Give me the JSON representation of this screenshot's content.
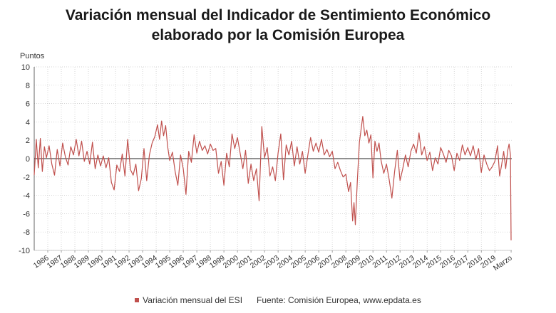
{
  "chart_data": {
    "type": "line",
    "title_line1": "Variación mensual del Indicador de Sentimiento Económico",
    "title_line2": "elaborado por la Comisión Europea",
    "ylabel": "Puntos",
    "ylim": [
      -10,
      10
    ],
    "yticks": [
      10,
      8,
      6,
      4,
      2,
      0,
      -2,
      -4,
      -6,
      -8,
      -10
    ],
    "grid": true,
    "line_color": "#c0504d",
    "x_start_year": 1985,
    "x_end_year": 2020.25,
    "x_labels": [
      {
        "year": 1986,
        "label": "1986"
      },
      {
        "year": 1987,
        "label": "1987"
      },
      {
        "year": 1988,
        "label": "1988"
      },
      {
        "year": 1989,
        "label": "1989"
      },
      {
        "year": 1990,
        "label": "1990"
      },
      {
        "year": 1991,
        "label": "1991"
      },
      {
        "year": 1992,
        "label": "1992"
      },
      {
        "year": 1993,
        "label": "1993"
      },
      {
        "year": 1994,
        "label": "1994"
      },
      {
        "year": 1995,
        "label": "1995"
      },
      {
        "year": 1996,
        "label": "1996"
      },
      {
        "year": 1997,
        "label": "1997"
      },
      {
        "year": 1998,
        "label": "1998"
      },
      {
        "year": 1999,
        "label": "1999"
      },
      {
        "year": 2000,
        "label": "2000"
      },
      {
        "year": 2001,
        "label": "2001"
      },
      {
        "year": 2002,
        "label": "2002"
      },
      {
        "year": 2003,
        "label": "2003"
      },
      {
        "year": 2004,
        "label": "2004"
      },
      {
        "year": 2005,
        "label": "2005"
      },
      {
        "year": 2006,
        "label": "2006"
      },
      {
        "year": 2007,
        "label": "2007"
      },
      {
        "year": 2008,
        "label": "2008"
      },
      {
        "year": 2009,
        "label": "2009"
      },
      {
        "year": 2010,
        "label": "2010"
      },
      {
        "year": 2011,
        "label": "2011"
      },
      {
        "year": 2012,
        "label": "2012"
      },
      {
        "year": 2013,
        "label": "2013"
      },
      {
        "year": 2014,
        "label": "2014"
      },
      {
        "year": 2015,
        "label": "2015"
      },
      {
        "year": 2016,
        "label": "2016"
      },
      {
        "year": 2017,
        "label": "2017"
      },
      {
        "year": 2018,
        "label": "2018"
      },
      {
        "year": 2019,
        "label": "2019"
      },
      {
        "year": 2020.2,
        "label": "Marzo"
      }
    ],
    "series": [
      {
        "name": "Variación mensual del ESI",
        "points": [
          [
            1985.0,
            -1.8
          ],
          [
            1985.15,
            2.1
          ],
          [
            1985.3,
            -1.0
          ],
          [
            1985.45,
            2.2
          ],
          [
            1985.6,
            -1.4
          ],
          [
            1985.75,
            1.3
          ],
          [
            1985.9,
            0.1
          ],
          [
            1986.1,
            1.4
          ],
          [
            1986.3,
            -0.6
          ],
          [
            1986.5,
            -1.8
          ],
          [
            1986.7,
            1.0
          ],
          [
            1986.9,
            -0.8
          ],
          [
            1987.1,
            1.7
          ],
          [
            1987.3,
            0.2
          ],
          [
            1987.5,
            -0.7
          ],
          [
            1987.7,
            1.3
          ],
          [
            1987.9,
            0.4
          ],
          [
            1988.1,
            2.1
          ],
          [
            1988.3,
            0.3
          ],
          [
            1988.5,
            1.9
          ],
          [
            1988.7,
            -0.3
          ],
          [
            1988.9,
            0.8
          ],
          [
            1989.1,
            -0.6
          ],
          [
            1989.3,
            1.8
          ],
          [
            1989.5,
            -1.1
          ],
          [
            1989.7,
            0.4
          ],
          [
            1989.9,
            -0.8
          ],
          [
            1990.1,
            0.3
          ],
          [
            1990.3,
            -1.0
          ],
          [
            1990.5,
            0.1
          ],
          [
            1990.7,
            -2.6
          ],
          [
            1990.9,
            -3.4
          ],
          [
            1991.1,
            -0.7
          ],
          [
            1991.3,
            -1.4
          ],
          [
            1991.5,
            0.5
          ],
          [
            1991.7,
            -1.9
          ],
          [
            1991.9,
            2.1
          ],
          [
            1992.1,
            -1.2
          ],
          [
            1992.3,
            -1.8
          ],
          [
            1992.5,
            -0.6
          ],
          [
            1992.7,
            -3.5
          ],
          [
            1992.9,
            -2.2
          ],
          [
            1993.1,
            1.1
          ],
          [
            1993.3,
            -2.4
          ],
          [
            1993.5,
            0.4
          ],
          [
            1993.7,
            1.7
          ],
          [
            1993.9,
            2.4
          ],
          [
            1994.1,
            3.7
          ],
          [
            1994.25,
            2.1
          ],
          [
            1994.4,
            4.1
          ],
          [
            1994.55,
            2.5
          ],
          [
            1994.7,
            3.6
          ],
          [
            1994.85,
            1.3
          ],
          [
            1995.0,
            -0.2
          ],
          [
            1995.2,
            0.7
          ],
          [
            1995.4,
            -1.4
          ],
          [
            1995.6,
            -2.9
          ],
          [
            1995.8,
            0.4
          ],
          [
            1996.0,
            -1.1
          ],
          [
            1996.2,
            -3.9
          ],
          [
            1996.4,
            0.8
          ],
          [
            1996.6,
            -0.4
          ],
          [
            1996.8,
            2.6
          ],
          [
            1997.0,
            0.6
          ],
          [
            1997.2,
            1.9
          ],
          [
            1997.4,
            0.9
          ],
          [
            1997.6,
            1.4
          ],
          [
            1997.8,
            0.5
          ],
          [
            1998.0,
            1.6
          ],
          [
            1998.2,
            0.9
          ],
          [
            1998.4,
            1.1
          ],
          [
            1998.6,
            -1.6
          ],
          [
            1998.8,
            -0.3
          ],
          [
            1999.0,
            -2.9
          ],
          [
            1999.2,
            0.6
          ],
          [
            1999.4,
            -0.9
          ],
          [
            1999.6,
            2.7
          ],
          [
            1999.8,
            1.1
          ],
          [
            2000.0,
            2.3
          ],
          [
            2000.2,
            0.6
          ],
          [
            2000.4,
            -1.1
          ],
          [
            2000.6,
            0.9
          ],
          [
            2000.8,
            -2.7
          ],
          [
            2001.0,
            -0.6
          ],
          [
            2001.2,
            -2.4
          ],
          [
            2001.4,
            -1.1
          ],
          [
            2001.6,
            -4.6
          ],
          [
            2001.8,
            3.5
          ],
          [
            2002.0,
            0.1
          ],
          [
            2002.2,
            1.2
          ],
          [
            2002.4,
            -1.9
          ],
          [
            2002.6,
            -0.9
          ],
          [
            2002.8,
            -2.4
          ],
          [
            2003.0,
            0.6
          ],
          [
            2003.2,
            2.7
          ],
          [
            2003.4,
            -2.3
          ],
          [
            2003.6,
            1.5
          ],
          [
            2003.8,
            0.4
          ],
          [
            2004.0,
            1.9
          ],
          [
            2004.2,
            -0.8
          ],
          [
            2004.4,
            1.3
          ],
          [
            2004.6,
            -0.6
          ],
          [
            2004.8,
            0.8
          ],
          [
            2005.0,
            -1.6
          ],
          [
            2005.2,
            0.4
          ],
          [
            2005.4,
            2.3
          ],
          [
            2005.6,
            0.8
          ],
          [
            2005.8,
            1.7
          ],
          [
            2006.0,
            0.7
          ],
          [
            2006.2,
            2.1
          ],
          [
            2006.4,
            0.4
          ],
          [
            2006.6,
            1.0
          ],
          [
            2006.8,
            0.2
          ],
          [
            2007.0,
            0.8
          ],
          [
            2007.2,
            -1.1
          ],
          [
            2007.4,
            -0.4
          ],
          [
            2007.6,
            -1.3
          ],
          [
            2007.8,
            -2.0
          ],
          [
            2008.0,
            -1.7
          ],
          [
            2008.2,
            -3.6
          ],
          [
            2008.35,
            -2.6
          ],
          [
            2008.5,
            -6.8
          ],
          [
            2008.6,
            -4.8
          ],
          [
            2008.7,
            -7.2
          ],
          [
            2008.85,
            -2.4
          ],
          [
            2009.0,
            1.8
          ],
          [
            2009.1,
            2.9
          ],
          [
            2009.25,
            4.6
          ],
          [
            2009.4,
            2.5
          ],
          [
            2009.55,
            3.1
          ],
          [
            2009.7,
            1.7
          ],
          [
            2009.85,
            2.6
          ],
          [
            2010.0,
            -2.1
          ],
          [
            2010.15,
            1.9
          ],
          [
            2010.3,
            0.8
          ],
          [
            2010.45,
            1.7
          ],
          [
            2010.6,
            -0.2
          ],
          [
            2010.8,
            -1.6
          ],
          [
            2011.0,
            -0.6
          ],
          [
            2011.2,
            -2.3
          ],
          [
            2011.4,
            -4.3
          ],
          [
            2011.6,
            -1.4
          ],
          [
            2011.8,
            0.9
          ],
          [
            2012.0,
            -2.4
          ],
          [
            2012.2,
            -1.1
          ],
          [
            2012.4,
            0.4
          ],
          [
            2012.6,
            -0.9
          ],
          [
            2012.8,
            0.8
          ],
          [
            2013.0,
            1.6
          ],
          [
            2013.2,
            0.6
          ],
          [
            2013.4,
            2.8
          ],
          [
            2013.6,
            0.4
          ],
          [
            2013.8,
            1.3
          ],
          [
            2014.0,
            -0.2
          ],
          [
            2014.2,
            0.7
          ],
          [
            2014.4,
            -1.3
          ],
          [
            2014.6,
            0.1
          ],
          [
            2014.8,
            -0.6
          ],
          [
            2015.0,
            1.2
          ],
          [
            2015.2,
            0.5
          ],
          [
            2015.4,
            -0.4
          ],
          [
            2015.6,
            0.9
          ],
          [
            2015.8,
            0.3
          ],
          [
            2016.0,
            -1.3
          ],
          [
            2016.2,
            0.6
          ],
          [
            2016.4,
            -0.2
          ],
          [
            2016.6,
            1.5
          ],
          [
            2016.8,
            0.4
          ],
          [
            2017.0,
            1.2
          ],
          [
            2017.2,
            0.3
          ],
          [
            2017.4,
            1.4
          ],
          [
            2017.6,
            -0.1
          ],
          [
            2017.8,
            1.1
          ],
          [
            2018.0,
            -1.5
          ],
          [
            2018.2,
            0.4
          ],
          [
            2018.4,
            -0.6
          ],
          [
            2018.6,
            -1.3
          ],
          [
            2018.8,
            -0.9
          ],
          [
            2019.0,
            -0.3
          ],
          [
            2019.2,
            1.4
          ],
          [
            2019.35,
            -1.9
          ],
          [
            2019.5,
            -0.7
          ],
          [
            2019.65,
            0.8
          ],
          [
            2019.8,
            -1.1
          ],
          [
            2019.95,
            0.9
          ],
          [
            2020.05,
            1.6
          ],
          [
            2020.15,
            0.4
          ],
          [
            2020.2,
            -8.9
          ]
        ]
      }
    ]
  },
  "footer": {
    "legend_label": "Variación mensual del ESI",
    "source": "Fuente: Comisión Europea, www.epdata.es"
  }
}
